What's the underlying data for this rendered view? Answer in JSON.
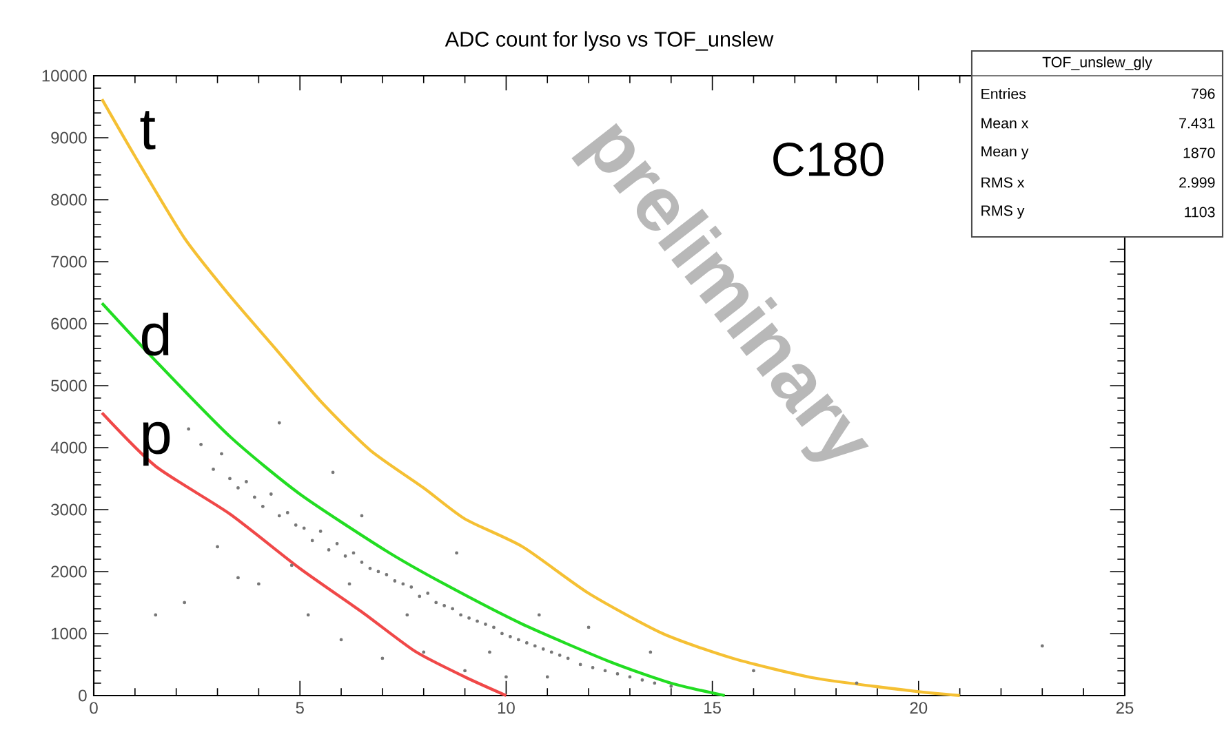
{
  "chart_data": {
    "type": "line",
    "title": "ADC count for lyso vs TOF_unslew",
    "xlim": [
      0,
      25
    ],
    "xticks": [
      0,
      5,
      10,
      15,
      20,
      25
    ],
    "ylim": [
      0,
      10000
    ],
    "yticks": [
      0,
      1000,
      2000,
      3000,
      4000,
      5000,
      6000,
      7000,
      8000,
      9000,
      10000
    ],
    "grid": false,
    "line_style": "solid",
    "series": [
      {
        "name": "t",
        "color": "#f5c033",
        "marker": "none",
        "x": [
          0.2,
          1,
          2.2,
          3.3,
          4.4,
          5.5,
          6.7,
          8,
          9,
          10.4,
          12,
          13.8,
          15.5,
          17.5,
          19.9,
          21
        ],
        "values": [
          9620,
          8700,
          7380,
          6450,
          5600,
          4750,
          3960,
          3350,
          2850,
          2400,
          1650,
          1000,
          600,
          280,
          70,
          0
        ]
      },
      {
        "name": "d",
        "color": "#22dd22",
        "marker": "none",
        "x": [
          0.2,
          1.5,
          3.3,
          5,
          7.1,
          8.5,
          10.4,
          12.5,
          14,
          15.3
        ],
        "values": [
          6330,
          5400,
          4180,
          3250,
          2330,
          1800,
          1150,
          550,
          200,
          0
        ]
      },
      {
        "name": "p",
        "color": "#f04848",
        "marker": "none",
        "x": [
          0.2,
          1.5,
          3.3,
          5,
          6.5,
          7.8,
          9,
          10
        ],
        "values": [
          4560,
          3700,
          2930,
          2050,
          1350,
          710,
          300,
          0
        ]
      },
      {
        "type": "scatter",
        "color": "#777777",
        "marker": "circle",
        "x": [
          2.3,
          2.6,
          2.9,
          3.1,
          3.3,
          3.5,
          3.7,
          3.9,
          4.1,
          4.3,
          4.5,
          4.7,
          4.9,
          5.1,
          5.3,
          5.5,
          5.7,
          5.9,
          6.1,
          6.3,
          6.5,
          6.7,
          6.9,
          7.1,
          7.3,
          7.5,
          7.7,
          7.9,
          8.1,
          8.3,
          8.5,
          8.7,
          8.9,
          9.1,
          9.3,
          9.5,
          9.7,
          9.9,
          10.1,
          10.3,
          10.5,
          10.7,
          10.9,
          11.1,
          11.3,
          11.5,
          11.8,
          12.1,
          12.4,
          12.7,
          13.0,
          13.3,
          13.6,
          14.0,
          3.0,
          4.0,
          5.2,
          6.0,
          7.0,
          8.0,
          9.0,
          10.0,
          11.0,
          2.2,
          5.8,
          4.5,
          6.5,
          8.8,
          12.0,
          16.0,
          18.5,
          23.0,
          1.5,
          3.5,
          7.6,
          9.6,
          13.5,
          4.8,
          6.2,
          10.8
        ],
        "values": [
          4300,
          4050,
          3650,
          3900,
          3500,
          3350,
          3450,
          3200,
          3050,
          3250,
          2900,
          2950,
          2750,
          2700,
          2500,
          2650,
          2350,
          2450,
          2250,
          2300,
          2150,
          2050,
          2000,
          1950,
          1850,
          1800,
          1750,
          1600,
          1650,
          1500,
          1450,
          1400,
          1300,
          1250,
          1200,
          1150,
          1100,
          1000,
          950,
          900,
          850,
          800,
          750,
          700,
          650,
          600,
          500,
          450,
          400,
          350,
          300,
          250,
          200,
          150,
          2400,
          1800,
          1300,
          900,
          600,
          700,
          400,
          300,
          300,
          1500,
          3600,
          4400,
          2900,
          2300,
          1100,
          400,
          200,
          800,
          1300,
          1900,
          1300,
          700,
          700,
          2100,
          1800,
          1300
        ]
      }
    ],
    "annotations": [
      "C180",
      "preliminary",
      "TOF_unslew_gly",
      "Entries",
      "796",
      "Mean x",
      "7.431",
      "Mean y",
      "1870",
      "RMS x",
      "2.999",
      "RMS y",
      "1103"
    ]
  }
}
